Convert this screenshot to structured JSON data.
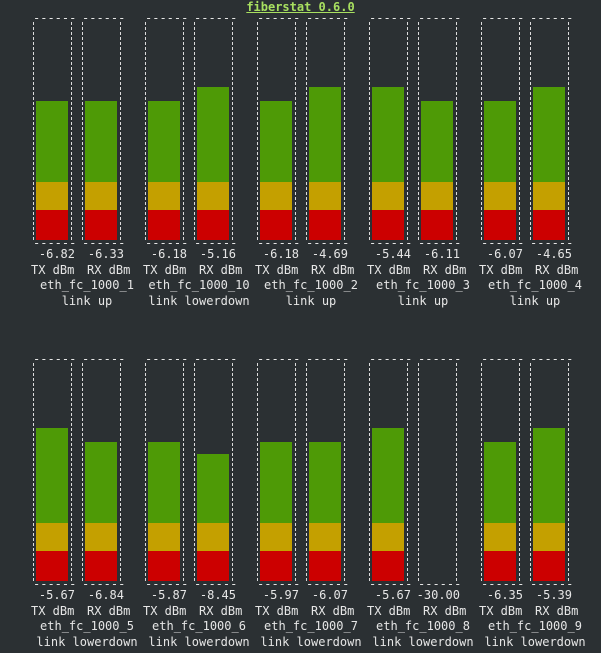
{
  "app": {
    "title": "fiberstat 0.6.0"
  },
  "units": {
    "tx": "TX dBm",
    "rx": "RX dBm",
    "dashes": "------"
  },
  "colors": {
    "green": "#4e9a06",
    "yellow": "#c4a000",
    "red": "#cc0000",
    "title": "#a8e060"
  },
  "panels": [
    {
      "iface": "eth_fc_1000_1",
      "status": "link up",
      "tx": "-6.82",
      "rx": "-6.33",
      "tx_level": 0.71,
      "rx_level": 0.71
    },
    {
      "iface": "eth_fc_1000_10",
      "status": "link lowerdown",
      "tx": "-6.18",
      "rx": "-5.16",
      "tx_level": 0.71,
      "rx_level": 0.78
    },
    {
      "iface": "eth_fc_1000_2",
      "status": "link up",
      "tx": "-6.18",
      "rx": "-4.69",
      "tx_level": 0.71,
      "rx_level": 0.78
    },
    {
      "iface": "eth_fc_1000_3",
      "status": "link up",
      "tx": "-5.44",
      "rx": "-6.11",
      "tx_level": 0.78,
      "rx_level": 0.71
    },
    {
      "iface": "eth_fc_1000_4",
      "status": "link up",
      "tx": "-6.07",
      "rx": "-4.65",
      "tx_level": 0.71,
      "rx_level": 0.78
    },
    {
      "iface": "eth_fc_1000_5",
      "status": "link lowerdown",
      "tx": "-5.67",
      "rx": "-6.84",
      "tx_level": 0.78,
      "rx_level": 0.71
    },
    {
      "iface": "eth_fc_1000_6",
      "status": "link lowerdown",
      "tx": "-5.87",
      "rx": "-8.45",
      "tx_level": 0.71,
      "rx_level": 0.65
    },
    {
      "iface": "eth_fc_1000_7",
      "status": "link lowerdown",
      "tx": "-5.97",
      "rx": "-6.07",
      "tx_level": 0.71,
      "rx_level": 0.71
    },
    {
      "iface": "eth_fc_1000_8",
      "status": "link lowerdown",
      "tx": "-5.67",
      "rx": "-30.00",
      "tx_level": 0.78,
      "rx_level": 0.0
    },
    {
      "iface": "eth_fc_1000_9",
      "status": "link lowerdown",
      "tx": "-6.35",
      "rx": "-5.39",
      "tx_level": 0.71,
      "rx_level": 0.78
    }
  ]
}
